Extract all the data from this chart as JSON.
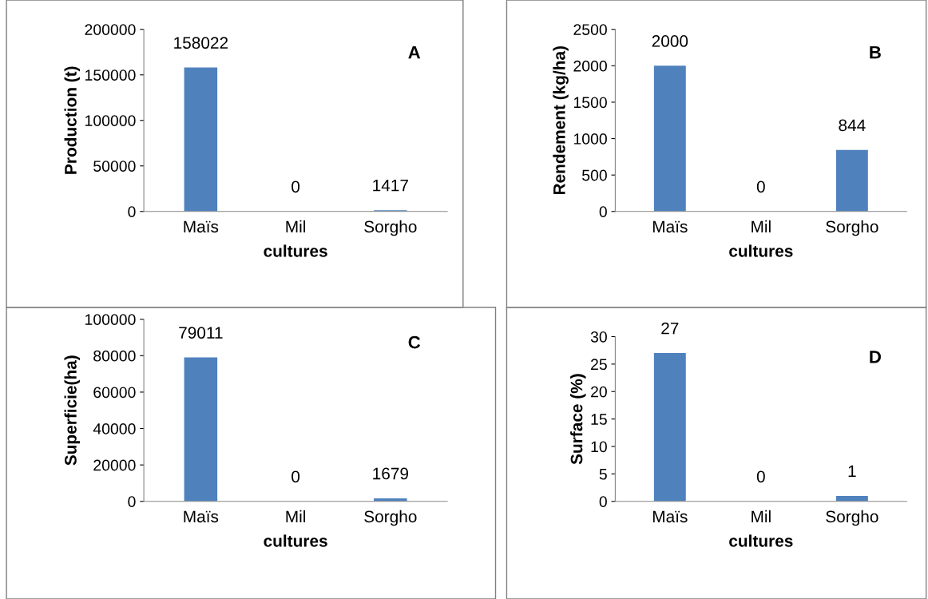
{
  "chart_data": [
    {
      "type": "bar",
      "categories": [
        "Maïs",
        "Mil",
        "Sorgho"
      ],
      "values": [
        158022,
        0,
        1417
      ],
      "color": "#4f81bd",
      "ylim": [
        0,
        200000
      ],
      "yticks": [
        0,
        50000,
        100000,
        150000,
        200000
      ],
      "xlabel": "cultures",
      "ylabel": "Production (t)",
      "annotations": [
        "A"
      ],
      "data_labels": true,
      "grid": false,
      "legend": false
    },
    {
      "type": "bar",
      "categories": [
        "Maïs",
        "Mil",
        "Sorgho"
      ],
      "values": [
        2000,
        0,
        844
      ],
      "color": "#4f81bd",
      "ylim": [
        0,
        2500
      ],
      "yticks": [
        0,
        500,
        1000,
        1500,
        2000,
        2500
      ],
      "xlabel": "cultures",
      "ylabel": "Rendement (kg/ha)",
      "annotations": [
        "B"
      ],
      "data_labels": true,
      "grid": false,
      "legend": false
    },
    {
      "type": "bar",
      "categories": [
        "Maïs",
        "Mil",
        "Sorgho"
      ],
      "values": [
        79011,
        0,
        1679
      ],
      "color": "#4f81bd",
      "ylim": [
        0,
        100000
      ],
      "yticks": [
        0,
        20000,
        40000,
        60000,
        80000,
        100000
      ],
      "xlabel": "cultures",
      "ylabel": "Superficie(ha)",
      "annotations": [
        "C"
      ],
      "data_labels": true,
      "grid": false,
      "legend": false
    },
    {
      "type": "bar",
      "categories": [
        "Maïs",
        "Mil",
        "Sorgho"
      ],
      "values": [
        27,
        0,
        1
      ],
      "color": "#4f81bd",
      "ylim": [
        0,
        30
      ],
      "yticks": [
        0,
        5,
        10,
        15,
        20,
        25,
        30
      ],
      "xlabel": "cultures",
      "ylabel": "Surface (%)",
      "annotations": [
        "D"
      ],
      "data_labels": true,
      "grid": false,
      "legend": false
    }
  ]
}
